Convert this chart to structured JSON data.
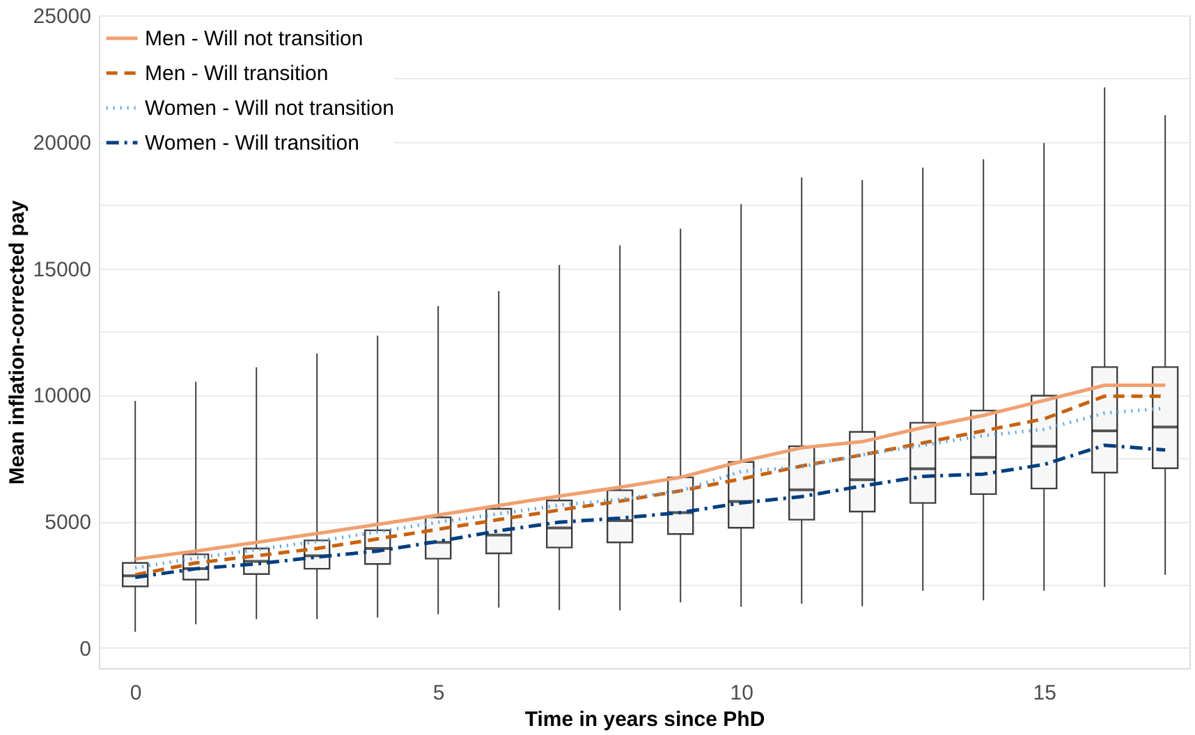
{
  "chart_data": {
    "type": "line",
    "xlabel": "Time in years since PhD",
    "ylabel": "Mean inflation-corrected pay",
    "xlim": [
      -0.6,
      17.4
    ],
    "ylim": [
      -800,
      25000
    ],
    "xticks": [
      0,
      5,
      10,
      15
    ],
    "yticks": [
      0,
      {
        "value": 2500,
        "label": null
      },
      5000,
      {
        "value": 7500,
        "label": null
      },
      10000,
      {
        "value": 12500,
        "label": null
      },
      15000,
      {
        "value": 17500,
        "label": null
      },
      20000,
      {
        "value": 22500,
        "label": null
      },
      25000
    ],
    "grid": "y",
    "legend": "top left",
    "marker": "none",
    "series": [
      {
        "type": "box",
        "color": "#404040",
        "x": [
          0,
          1,
          2,
          3,
          4,
          5,
          6,
          7,
          8,
          9,
          10,
          11,
          12,
          13,
          14,
          15,
          16,
          17
        ],
        "boxes": [
          {
            "low": 640,
            "q1": 2430,
            "median": 2850,
            "q3": 3360,
            "high": 9760
          },
          {
            "low": 930,
            "q1": 2700,
            "median": 3130,
            "q3": 3700,
            "high": 10520
          },
          {
            "low": 1140,
            "q1": 2920,
            "median": 3420,
            "q3": 3930,
            "high": 11090
          },
          {
            "low": 1140,
            "q1": 3130,
            "median": 3640,
            "q3": 4250,
            "high": 11640
          },
          {
            "low": 1200,
            "q1": 3320,
            "median": 3930,
            "q3": 4650,
            "high": 12340
          },
          {
            "low": 1330,
            "q1": 3530,
            "median": 4170,
            "q3": 5160,
            "high": 13510
          },
          {
            "low": 1590,
            "q1": 3740,
            "median": 4460,
            "q3": 5500,
            "high": 14100
          },
          {
            "low": 1500,
            "q1": 3970,
            "median": 4740,
            "q3": 5830,
            "high": 15130
          },
          {
            "low": 1480,
            "q1": 4170,
            "median": 5030,
            "q3": 6230,
            "high": 15910
          },
          {
            "low": 1800,
            "q1": 4500,
            "median": 5350,
            "q3": 6740,
            "high": 16570
          },
          {
            "low": 1630,
            "q1": 4750,
            "median": 5790,
            "q3": 7350,
            "high": 17540
          },
          {
            "low": 1750,
            "q1": 5070,
            "median": 6250,
            "q3": 7970,
            "high": 18590
          },
          {
            "low": 1650,
            "q1": 5390,
            "median": 6650,
            "q3": 8540,
            "high": 18490
          },
          {
            "low": 2260,
            "q1": 5730,
            "median": 7080,
            "q3": 8900,
            "high": 18980
          },
          {
            "low": 1880,
            "q1": 6080,
            "median": 7530,
            "q3": 9380,
            "high": 19310
          },
          {
            "low": 2260,
            "q1": 6300,
            "median": 7970,
            "q3": 9970,
            "high": 19950
          },
          {
            "low": 2410,
            "q1": 6930,
            "median": 8580,
            "q3": 11100,
            "high": 22150
          },
          {
            "low": 2890,
            "q1": 7100,
            "median": 8730,
            "q3": 11100,
            "high": 21050
          }
        ]
      },
      {
        "name": "Men - Will not transition",
        "color": "#f0a070",
        "line_style": "solid",
        "x": [
          0,
          1,
          2,
          3,
          4,
          5,
          6,
          7,
          8,
          9,
          10,
          11,
          12,
          13,
          14,
          15,
          16,
          17
        ],
        "values": [
          3510,
          3830,
          4170,
          4520,
          4880,
          5250,
          5630,
          6000,
          6350,
          6740,
          7370,
          7910,
          8150,
          8710,
          9190,
          9780,
          10380,
          10380
        ]
      },
      {
        "name": "Men - Will transition",
        "color": "#c8620f",
        "line_style": "dashed",
        "x": [
          0,
          1,
          2,
          3,
          4,
          5,
          6,
          7,
          8,
          9,
          10,
          11,
          12,
          13,
          14,
          15,
          16,
          17
        ],
        "values": [
          2890,
          3360,
          3640,
          3930,
          4310,
          4690,
          5070,
          5450,
          5800,
          6210,
          6680,
          7190,
          7630,
          8100,
          8580,
          9050,
          9950,
          9950
        ]
      },
      {
        "name": "Women - Will not transition",
        "color": "#5da5e0",
        "line_style": "dotted",
        "x": [
          0,
          1,
          2,
          3,
          4,
          5,
          6,
          7,
          8,
          9,
          10,
          11,
          12,
          13,
          14,
          15,
          16,
          17
        ],
        "values": [
          3170,
          3550,
          3890,
          4210,
          4590,
          4970,
          5300,
          5640,
          5870,
          6210,
          6970,
          7160,
          7630,
          8010,
          8390,
          8640,
          9280,
          9470
        ]
      },
      {
        "name": "Women - Will transition",
        "color": "#003f7f",
        "line_style": "dashdot",
        "x": [
          0,
          1,
          2,
          3,
          4,
          5,
          6,
          7,
          8,
          9,
          10,
          11,
          12,
          13,
          14,
          15,
          16,
          17
        ],
        "values": [
          2790,
          3130,
          3320,
          3590,
          3830,
          4210,
          4630,
          4970,
          5130,
          5350,
          5730,
          5980,
          6400,
          6780,
          6870,
          7250,
          8010,
          7820
        ]
      }
    ]
  }
}
